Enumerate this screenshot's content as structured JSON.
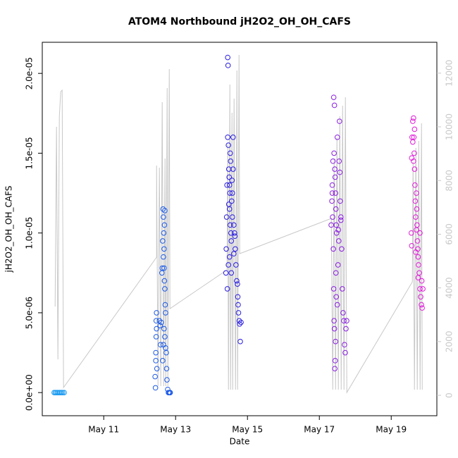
{
  "chart_data": {
    "type": "scatter",
    "title": "ATOM4 Northbound jH2O2_OH_OH_CAFS",
    "x_label": "Date",
    "y_label": "jH2O2_OH_OH_CAFS",
    "xlim": [
      9.29,
      20.27
    ],
    "xticks": [
      {
        "value": 11,
        "label": "May 11"
      },
      {
        "value": 13,
        "label": "May 13"
      },
      {
        "value": 15,
        "label": "May 15"
      },
      {
        "value": 17,
        "label": "May 17"
      },
      {
        "value": 19,
        "label": "May 19"
      }
    ],
    "ylim": [
      -1.45e-06,
      2.195e-05
    ],
    "yticks": [
      {
        "value": 0,
        "label": "0.0e+00"
      },
      {
        "value": 5e-06,
        "label": "5.0e-06"
      },
      {
        "value": 1e-05,
        "label": "1.0e-05"
      },
      {
        "value": 1.5e-05,
        "label": "1.5e-05"
      },
      {
        "value": 2e-05,
        "label": "2.0e-05"
      }
    ],
    "y2lim": [
      -761,
      13150
    ],
    "y2ticks": [
      0,
      2000,
      4000,
      6000,
      8000,
      10000,
      12000
    ],
    "y2_color": "#c8c8c8",
    "series": [
      {
        "color": "#1e9cf0",
        "x": [
          9.62,
          9.65,
          9.68,
          9.71,
          9.74,
          9.77,
          9.8,
          9.83,
          9.86,
          9.9
        ],
        "values": [
          0,
          0,
          0,
          0,
          0,
          0,
          0,
          0,
          0,
          0
        ]
      },
      {
        "color": "#1c5ae6",
        "x": [
          12.43,
          12.44,
          12.45,
          12.46,
          12.47,
          12.46,
          12.48,
          12.45,
          12.47,
          12.55,
          12.57,
          12.58,
          12.6,
          12.62,
          12.63,
          12.64,
          12.65,
          12.66,
          12.67,
          12.66,
          12.68,
          12.7,
          12.69,
          12.7,
          12.71,
          12.72,
          12.68,
          12.7,
          12.72,
          12.74,
          12.75,
          12.76,
          12.78,
          12.8,
          12.82,
          12.84,
          12.85,
          12.64,
          12.66,
          12.68,
          12.69
        ],
        "values": [
          1e-06,
          3e-07,
          2e-06,
          4.5e-06,
          5e-06,
          3.5e-06,
          1.5e-06,
          2.5e-06,
          4e-06,
          4.5e-06,
          4.2e-06,
          3e-06,
          4.4e-06,
          7.5e-06,
          7.8e-06,
          9.5e-06,
          1.15e-05,
          1.1e-05,
          1e-05,
          8.5e-06,
          9e-06,
          1.14e-05,
          7e-06,
          6.5e-06,
          5.5e-06,
          5e-06,
          4e-06,
          3.5e-06,
          2.8e-06,
          2.5e-06,
          1.5e-06,
          8e-07,
          2e-07,
          0,
          0,
          0,
          0,
          2e-06,
          3e-06,
          7.8e-06,
          1.05e-05
        ]
      },
      {
        "color": "#2a1de0",
        "x": [
          14.4,
          14.41,
          14.42,
          14.43,
          14.44,
          14.45,
          14.46,
          14.45,
          14.47,
          14.48,
          14.49,
          14.5,
          14.51,
          14.52,
          14.53,
          14.5,
          14.52,
          14.54,
          14.55,
          14.56,
          14.58,
          14.6,
          14.48,
          14.47,
          14.5,
          14.55,
          14.62,
          14.64,
          14.66,
          14.68,
          14.7,
          14.72,
          14.74,
          14.75,
          14.77,
          14.78,
          14.8,
          14.73,
          14.6,
          14.58,
          14.57,
          14.62,
          14.65,
          14.82
        ],
        "values": [
          7.5e-06,
          9e-06,
          1.1e-05,
          1.3e-05,
          6.5e-06,
          2.1e-05,
          2.05e-05,
          1.6e-05,
          1.55e-05,
          1.4e-05,
          1.35e-05,
          1.3e-05,
          1.25e-05,
          1.5e-05,
          1.45e-05,
          1.15e-05,
          1.05e-05,
          1e-05,
          9.5e-06,
          1.2e-05,
          1.1e-05,
          1.4e-05,
          1.18e-05,
          8e-06,
          8.5e-06,
          7.5e-06,
          1.05e-05,
          1e-05,
          9e-06,
          8e-06,
          7e-06,
          6.8e-06,
          5.5e-06,
          5e-06,
          4.5e-06,
          4.3e-06,
          3.2e-06,
          6e-06,
          1.6e-05,
          1.25e-05,
          1.33e-05,
          8.7e-06,
          9.8e-06,
          4.4e-06
        ]
      },
      {
        "color": "#8a1de0",
        "x": [
          17.33,
          17.35,
          17.36,
          17.38,
          17.4,
          17.42,
          17.41,
          17.43,
          17.44,
          17.45,
          17.46,
          17.47,
          17.48,
          17.37,
          17.39,
          17.4,
          17.41,
          17.42,
          17.43,
          17.44,
          17.46,
          17.47,
          17.5,
          17.52,
          17.54,
          17.55,
          17.56,
          17.58,
          17.6,
          17.62,
          17.64,
          17.66,
          17.68,
          17.7,
          17.72,
          17.74,
          17.76,
          17.36,
          17.45,
          17.5,
          17.53,
          17.57,
          17.6
        ],
        "values": [
          1.05e-05,
          1.2e-05,
          1.3e-05,
          1.45e-05,
          1.85e-05,
          1.8e-05,
          1.5e-05,
          1.4e-05,
          1.35e-05,
          1.25e-05,
          1.15e-05,
          1.05e-05,
          1e-05,
          1.1e-05,
          9e-06,
          6.5e-06,
          4.5e-06,
          4e-06,
          1.5e-06,
          2e-06,
          7.5e-06,
          6e-06,
          5.5e-06,
          8e-06,
          9.5e-06,
          1.45e-05,
          1.7e-05,
          1.2e-05,
          1.1e-05,
          9e-06,
          6.5e-06,
          5e-06,
          4.5e-06,
          3e-06,
          2.5e-06,
          4e-06,
          4.5e-06,
          1.25e-05,
          3.2e-06,
          1.6e-05,
          1.02e-05,
          1.38e-05,
          1.08e-05
        ]
      },
      {
        "color": "#e01ad8",
        "x": [
          19.56,
          19.57,
          19.58,
          19.6,
          19.62,
          19.63,
          19.64,
          19.65,
          19.66,
          19.67,
          19.68,
          19.7,
          19.71,
          19.72,
          19.73,
          19.74,
          19.75,
          19.76,
          19.78,
          19.8,
          19.82,
          19.84,
          19.86,
          19.88,
          19.57,
          19.6,
          19.65,
          19.7,
          19.75,
          19.8,
          19.62,
          19.68,
          19.85
        ],
        "values": [
          1e-05,
          1.47e-05,
          1.6e-05,
          1.7e-05,
          1.72e-05,
          1.6e-05,
          1.5e-05,
          1.4e-05,
          1.3e-05,
          1.2e-05,
          1.1e-05,
          1.25e-05,
          1.15e-05,
          1.05e-05,
          9.5e-06,
          9e-06,
          8.5e-06,
          8e-06,
          7.5e-06,
          6.5e-06,
          6e-06,
          5.5e-06,
          5.3e-06,
          6.5e-06,
          9.2e-06,
          1.57e-05,
          1.65e-05,
          1.02e-05,
          7.2e-06,
          1e-05,
          1.45e-05,
          8.8e-06,
          7e-06
        ]
      },
      {
        "type": "line",
        "axis": "y2",
        "color": "#c8c8c8",
        "x": [
          9.647,
          9.686,
          9.725,
          9.765,
          9.804,
          9.843,
          9.882,
          12.471,
          12.471,
          12.51,
          12.549,
          12.588,
          12.627,
          12.667,
          12.706,
          12.725,
          12.765,
          12.784,
          12.824,
          12.843,
          14.431,
          14.451,
          14.471,
          14.51,
          14.529,
          14.569,
          14.588,
          14.627,
          14.667,
          14.706,
          14.725,
          14.765,
          14.784,
          17.333,
          17.373,
          17.412,
          17.451,
          17.49,
          17.529,
          17.569,
          17.608,
          17.647,
          17.686,
          17.725,
          17.765,
          19.588,
          19.608,
          19.647,
          19.686,
          19.725,
          19.765,
          19.804,
          19.843,
          19.863
        ],
        "values": [
          3307,
          10000,
          1339,
          10394,
          11312,
          11365,
          289,
          5144,
          8556,
          341,
          8478,
          341,
          10919,
          341,
          8819,
          341,
          11444,
          341,
          12150,
          3228,
          4672,
          9344,
          210,
          11575,
          210,
          10525,
          210,
          11050,
          210,
          12100,
          210,
          12677,
          5276,
          6588,
          210,
          8819,
          210,
          9606,
          210,
          10394,
          210,
          10787,
          210,
          11102,
          105,
          4226,
          8688,
          210,
          9213,
          210,
          9475,
          210,
          10131,
          210
        ]
      }
    ]
  }
}
